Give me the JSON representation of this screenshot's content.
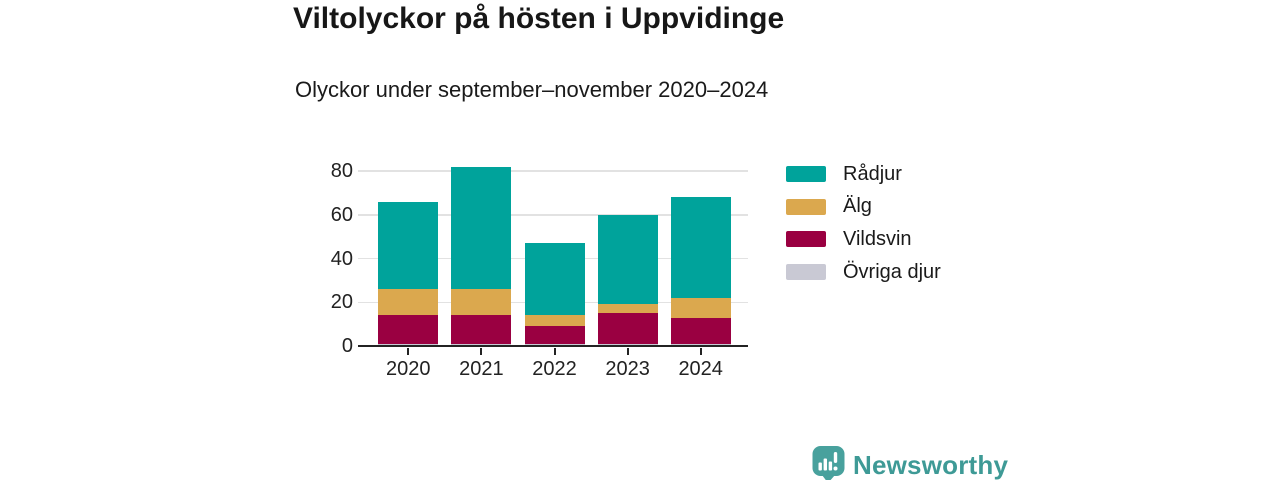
{
  "header": {
    "title": "Viltolyckor på hösten i Uppvidinge",
    "subtitle": "Olyckor under september–november 2020–2024"
  },
  "chart_data": {
    "type": "bar",
    "stacked": true,
    "title": "Viltolyckor på hösten i Uppvidinge",
    "subtitle": "Olyckor under september–november 2020–2024",
    "categories": [
      "2020",
      "2021",
      "2022",
      "2023",
      "2024"
    ],
    "series": [
      {
        "name": "Rådjur",
        "color": "#00a39b",
        "values": [
          40,
          56,
          33,
          41,
          46
        ]
      },
      {
        "name": "Älg",
        "color": "#dba84e",
        "values": [
          12,
          12,
          5,
          4,
          9
        ]
      },
      {
        "name": "Vildsvin",
        "color": "#9a0041",
        "values": [
          13,
          13,
          8,
          14,
          12
        ]
      },
      {
        "name": "Övriga djur",
        "color": "#c9c9d4",
        "values": [
          1,
          1,
          1,
          1,
          1
        ]
      }
    ],
    "stack_order_bottom_to_top": [
      "Övriga djur",
      "Vildsvin",
      "Älg",
      "Rådjur"
    ],
    "totals": [
      66,
      82,
      47,
      60,
      68
    ],
    "xlabel": "",
    "ylabel": "",
    "ylim": [
      0,
      85
    ],
    "yticks": [
      0,
      20,
      40,
      60,
      80
    ],
    "grid": true,
    "legend_position": "right"
  },
  "legend": {
    "items": [
      "Rådjur",
      "Älg",
      "Vildsvin",
      "Övriga djur"
    ]
  },
  "branding": {
    "name": "Newsworthy",
    "icon": "newsworthy-bubble-chart-icon",
    "icon_color": "#48a19d",
    "text_color": "#3e9a96"
  },
  "colors": {
    "background": "#ffffff",
    "axis": "#232323",
    "grid": "#e2e2e2",
    "text": "#1a1a1a"
  }
}
